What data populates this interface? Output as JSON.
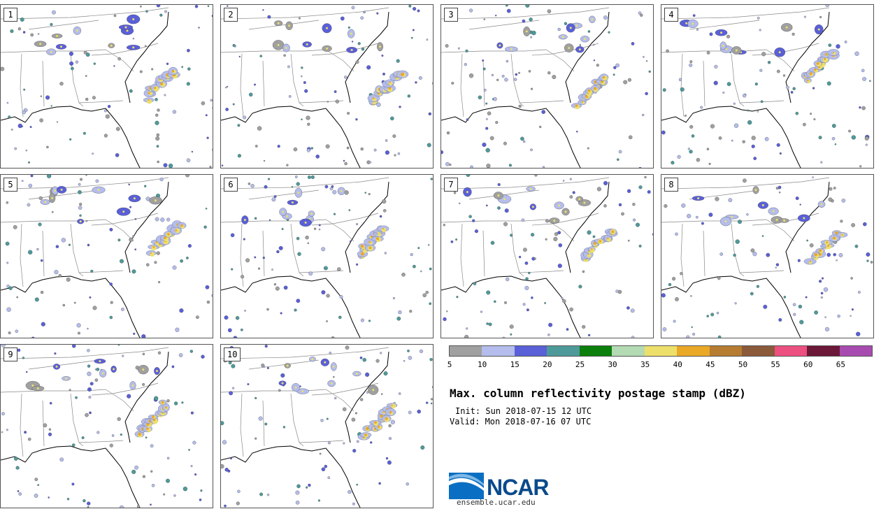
{
  "panels": [
    {
      "label": "1"
    },
    {
      "label": "2"
    },
    {
      "label": "3"
    },
    {
      "label": "4"
    },
    {
      "label": "5"
    },
    {
      "label": "6"
    },
    {
      "label": "7"
    },
    {
      "label": "8"
    },
    {
      "label": "9"
    },
    {
      "label": "10"
    }
  ],
  "colorbar": {
    "ticks": [
      "5",
      "10",
      "15",
      "20",
      "25",
      "30",
      "35",
      "40",
      "45",
      "50",
      "55",
      "60",
      "65"
    ],
    "colors": [
      "#a0a0a0",
      "#b4bdeb",
      "#5a60d8",
      "#4e9a9a",
      "#0c7f0c",
      "#b4dab4",
      "#ede06a",
      "#eaa827",
      "#b67c31",
      "#8b5a3a",
      "#ec5080",
      "#6c1838",
      "#a84bb0"
    ]
  },
  "title": "Max. column reflectivity postage stamp (dBZ)",
  "init": "Init: Sun 2018-07-15 12 UTC",
  "valid": "Valid: Mon 2018-07-16 07 UTC",
  "logo": {
    "text": "NCAR",
    "site": "ensemble.ucar.edu"
  }
}
